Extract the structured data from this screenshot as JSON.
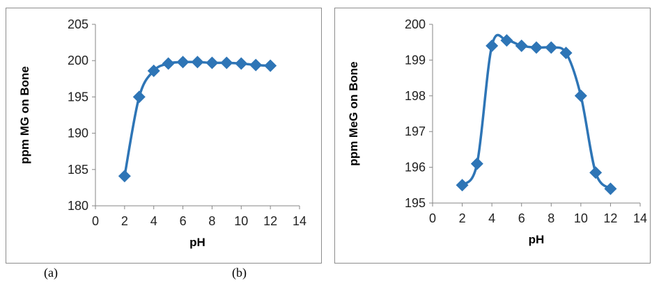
{
  "captions": {
    "a": "(a)",
    "b": "(b)"
  },
  "chart_data": [
    {
      "type": "line",
      "xlabel": "pH",
      "ylabel": "ppm MG on Bone",
      "xlim": [
        0,
        14
      ],
      "ylim": [
        180,
        205
      ],
      "xticks": [
        0,
        2,
        4,
        6,
        8,
        10,
        12,
        14
      ],
      "yticks": [
        180,
        185,
        190,
        195,
        200,
        205
      ],
      "grid": false,
      "series_color": "#2e75b6",
      "marker": "diamond",
      "x": [
        2,
        3,
        4,
        5,
        6,
        7,
        8,
        9,
        10,
        11,
        12
      ],
      "y": [
        184.1,
        195.0,
        198.6,
        199.6,
        199.8,
        199.8,
        199.7,
        199.7,
        199.6,
        199.4,
        199.3
      ]
    },
    {
      "type": "line",
      "xlabel": "pH",
      "ylabel": "ppm MeG on Bone",
      "xlim": [
        0,
        14
      ],
      "ylim": [
        195,
        200
      ],
      "xticks": [
        0,
        2,
        4,
        6,
        8,
        10,
        12,
        14
      ],
      "yticks": [
        195,
        196,
        197,
        198,
        199,
        200
      ],
      "grid": false,
      "series_color": "#2e75b6",
      "marker": "diamond",
      "x": [
        2,
        3,
        4,
        5,
        6,
        7,
        8,
        9,
        10,
        11,
        12
      ],
      "y": [
        195.5,
        196.1,
        199.4,
        199.55,
        199.4,
        199.35,
        199.35,
        199.2,
        198.0,
        195.85,
        195.4
      ]
    }
  ]
}
